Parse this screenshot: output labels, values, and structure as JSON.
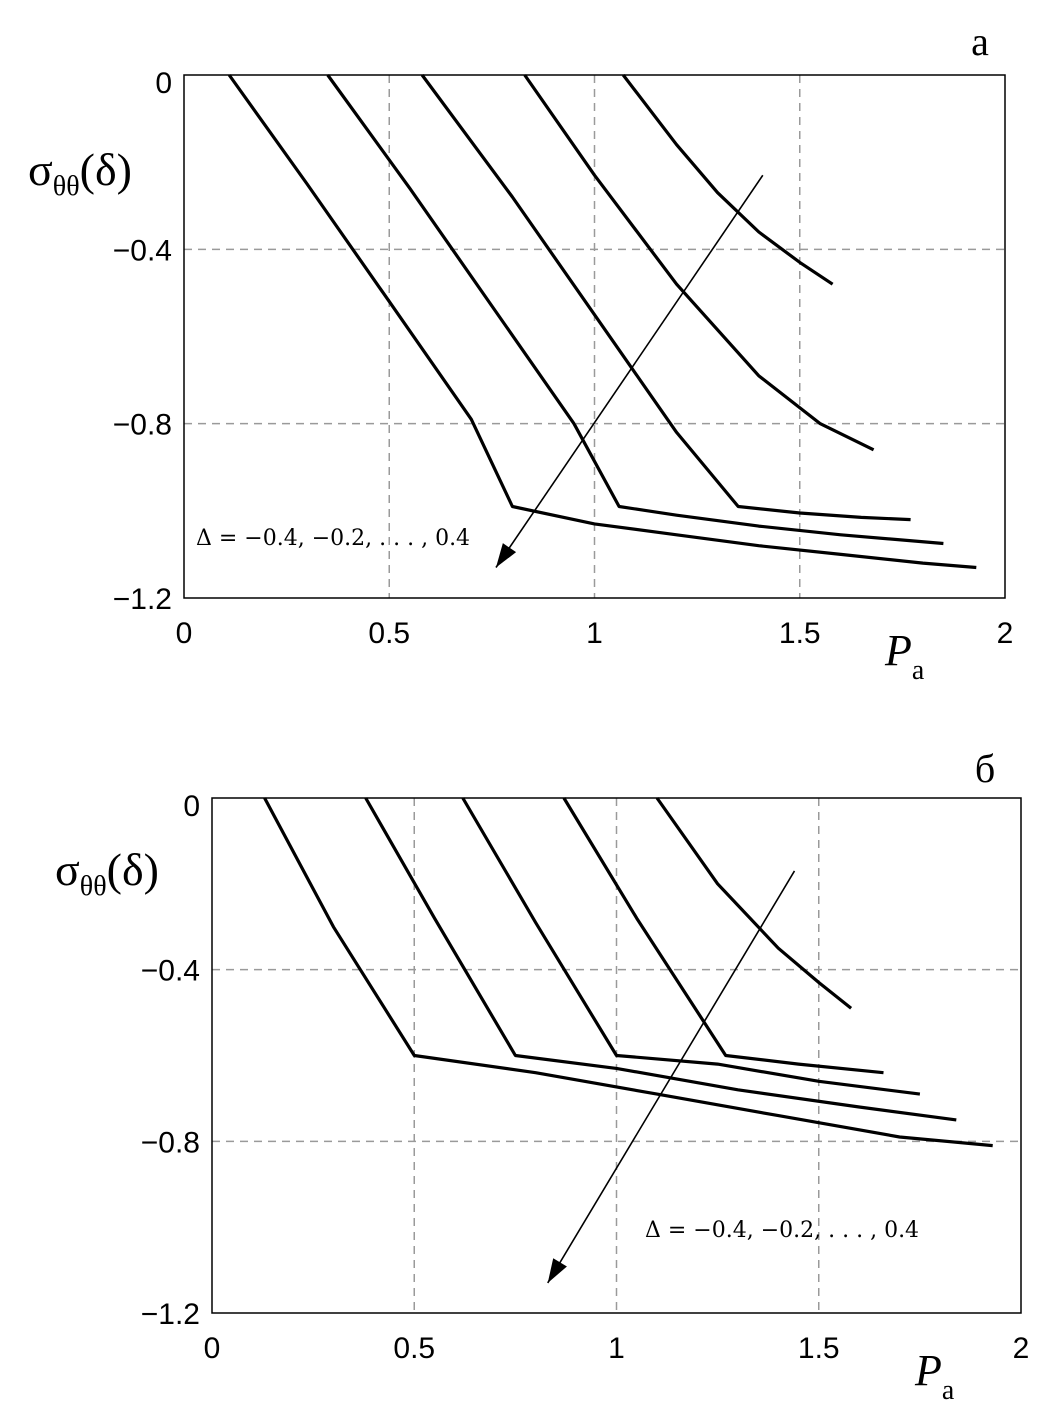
{
  "chart_data": [
    {
      "type": "line",
      "panel": "а",
      "xlabel": "P",
      "xlabel_sub": "a",
      "ylabel": "σ",
      "ylabel_sub": "θθ",
      "ylabel_arg": "(δ)",
      "xlim": [
        0,
        2
      ],
      "ylim": [
        -1.2,
        0
      ],
      "xticks": [
        0,
        0.5,
        1,
        1.5,
        2
      ],
      "xtick_labels": [
        "0",
        "0.5",
        "1",
        "1.5",
        "2"
      ],
      "yticks": [
        0,
        -0.4,
        -0.8,
        -1.2
      ],
      "ytick_labels": [
        "0",
        "−0.4",
        "−0.8",
        "−1.2"
      ],
      "grid": true,
      "annotation": "Δ = −0.4, −0.2, . . . , 0.4",
      "arrow": {
        "from": [
          1.41,
          -0.23
        ],
        "to": [
          0.76,
          -1.13
        ]
      },
      "series": [
        {
          "x": [
            0.11,
            0.3,
            0.5,
            0.7,
            0.8,
            1.0,
            1.2,
            1.4,
            1.6,
            1.8,
            1.93
          ],
          "y": [
            0,
            -0.25,
            -0.52,
            -0.79,
            -0.99,
            -1.03,
            -1.055,
            -1.08,
            -1.1,
            -1.12,
            -1.13
          ]
        },
        {
          "x": [
            0.35,
            0.55,
            0.75,
            0.95,
            1.06,
            1.2,
            1.4,
            1.6,
            1.85
          ],
          "y": [
            0,
            -0.26,
            -0.53,
            -0.8,
            -0.99,
            -1.01,
            -1.035,
            -1.055,
            -1.075
          ]
        },
        {
          "x": [
            0.58,
            0.8,
            1.0,
            1.2,
            1.35,
            1.5,
            1.65,
            1.77
          ],
          "y": [
            0,
            -0.28,
            -0.55,
            -0.82,
            -0.99,
            -1.005,
            -1.015,
            -1.02
          ]
        },
        {
          "x": [
            0.83,
            1.0,
            1.2,
            1.4,
            1.55,
            1.68
          ],
          "y": [
            0,
            -0.23,
            -0.48,
            -0.69,
            -0.8,
            -0.86
          ]
        },
        {
          "x": [
            1.07,
            1.2,
            1.3,
            1.4,
            1.5,
            1.58
          ],
          "y": [
            0,
            -0.16,
            -0.27,
            -0.36,
            -0.43,
            -0.48
          ]
        }
      ]
    },
    {
      "type": "line",
      "panel": "б",
      "xlabel": "P",
      "xlabel_sub": "a",
      "ylabel": "σ",
      "ylabel_sub": "θθ",
      "ylabel_arg": "(δ)",
      "xlim": [
        0,
        2
      ],
      "ylim": [
        -1.2,
        0
      ],
      "xticks": [
        0,
        0.5,
        1,
        1.5,
        2
      ],
      "xtick_labels": [
        "0",
        "0.5",
        "1",
        "1.5",
        "2"
      ],
      "yticks": [
        0,
        -0.4,
        -0.8,
        -1.2
      ],
      "ytick_labels": [
        "0",
        "−0.4",
        "−0.8",
        "−1.2"
      ],
      "grid": true,
      "annotation": "Δ = −0.4, −0.2, . . . , 0.4",
      "arrow": {
        "from": [
          1.44,
          -0.17
        ],
        "to": [
          0.83,
          -1.13
        ]
      },
      "series": [
        {
          "x": [
            0.13,
            0.3,
            0.5,
            0.8,
            1.1,
            1.4,
            1.7,
            1.93
          ],
          "y": [
            0,
            -0.3,
            -0.6,
            -0.64,
            -0.69,
            -0.74,
            -0.79,
            -0.81
          ]
        },
        {
          "x": [
            0.38,
            0.55,
            0.75,
            1.0,
            1.3,
            1.6,
            1.84
          ],
          "y": [
            0,
            -0.28,
            -0.6,
            -0.63,
            -0.68,
            -0.72,
            -0.75
          ]
        },
        {
          "x": [
            0.62,
            0.8,
            1.0,
            1.25,
            1.5,
            1.75
          ],
          "y": [
            0,
            -0.29,
            -0.6,
            -0.62,
            -0.66,
            -0.69
          ]
        },
        {
          "x": [
            0.87,
            1.05,
            1.27,
            1.45,
            1.66
          ],
          "y": [
            0,
            -0.28,
            -0.6,
            -0.62,
            -0.64
          ]
        },
        {
          "x": [
            1.1,
            1.25,
            1.4,
            1.5,
            1.58
          ],
          "y": [
            0,
            -0.2,
            -0.35,
            -0.43,
            -0.49
          ]
        }
      ]
    }
  ]
}
